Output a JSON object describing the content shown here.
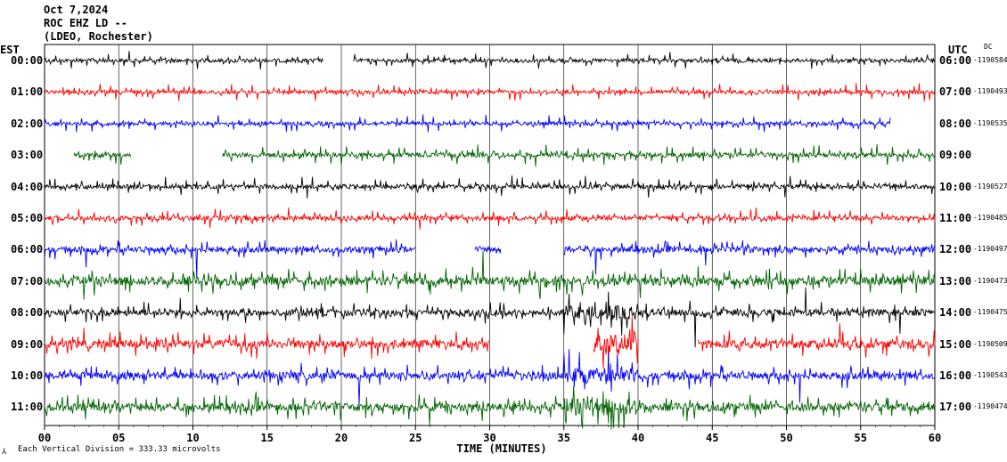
{
  "header": {
    "date": "Oct 7,2024",
    "station": "ROC EHZ LD --",
    "network": "(LDEO, Rochester)"
  },
  "left_axis_title": "EST",
  "right_axis_title": "UTC",
  "right_sub_title": "DC",
  "chart_data": {
    "type": "line",
    "title": "",
    "xlabel": "TIME (MINUTES)",
    "xlim": [
      0,
      60
    ],
    "x_ticks": [
      "00",
      "05",
      "10",
      "15",
      "20",
      "25",
      "30",
      "35",
      "40",
      "45",
      "50",
      "55",
      "60"
    ],
    "scale_note": "Each Vertical Division =  333.33 microvolts",
    "colors": [
      "#000000",
      "#ff0000",
      "#0000ff",
      "#006400"
    ],
    "rows": [
      {
        "est": "00:00",
        "utc": "06:00",
        "dc": "-1190584",
        "color": "#000000",
        "start": 0,
        "end": 60,
        "gaps": [
          [
            18.8,
            20.8
          ]
        ],
        "level": 1
      },
      {
        "est": "01:00",
        "utc": "07:00",
        "dc": "-1190493",
        "color": "#ff0000",
        "start": 0,
        "end": 60,
        "gaps": [],
        "level": 1
      },
      {
        "est": "02:00",
        "utc": "08:00",
        "dc": "-1190535",
        "color": "#0000ff",
        "start": 0,
        "end": 57,
        "gaps": [],
        "level": 1
      },
      {
        "est": "03:00",
        "utc": "09:00",
        "dc": "",
        "color": "#006400",
        "start": 2,
        "end": 60,
        "gaps": [
          [
            5.8,
            12
          ]
        ],
        "level": 1.3
      },
      {
        "est": "04:00",
        "utc": "10:00",
        "dc": "-1190527",
        "color": "#000000",
        "start": 0,
        "end": 60,
        "gaps": [],
        "level": 1.2
      },
      {
        "est": "05:00",
        "utc": "11:00",
        "dc": "-1190485",
        "color": "#ff0000",
        "start": 0,
        "end": 60,
        "gaps": [],
        "level": 1.2
      },
      {
        "est": "06:00",
        "utc": "12:00",
        "dc": "-1190497",
        "color": "#0000ff",
        "start": 0,
        "end": 60,
        "gaps": [
          [
            25,
            29
          ],
          [
            30.8,
            35
          ]
        ],
        "level": 1.6
      },
      {
        "est": "07:00",
        "utc": "13:00",
        "dc": "-1190473",
        "color": "#006400",
        "start": 0,
        "end": 60,
        "gaps": [],
        "level": 2.4
      },
      {
        "est": "08:00",
        "utc": "14:00",
        "dc": "-1190475",
        "color": "#000000",
        "start": 0,
        "end": 60,
        "gaps": [],
        "level": 1.8
      },
      {
        "est": "09:00",
        "utc": "15:00",
        "dc": "-1190509",
        "color": "#ff0000",
        "start": 0,
        "end": 60,
        "gaps": [
          [
            30,
            37
          ],
          [
            40,
            44
          ]
        ],
        "level": 2.3
      },
      {
        "est": "10:00",
        "utc": "16:00",
        "dc": "-1190543",
        "color": "#0000ff",
        "start": 0,
        "end": 60,
        "gaps": [],
        "level": 2.0
      },
      {
        "est": "11:00",
        "utc": "17:00",
        "dc": "-1190474",
        "color": "#006400",
        "start": 0,
        "end": 60,
        "gaps": [],
        "level": 2.2
      }
    ]
  }
}
